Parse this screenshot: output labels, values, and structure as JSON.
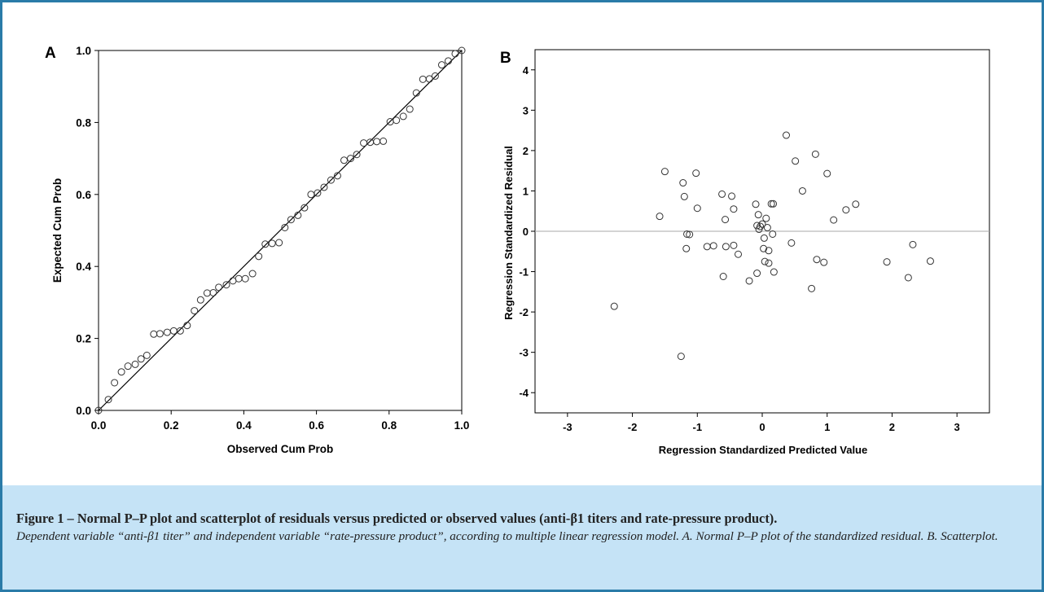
{
  "chart_data": [
    {
      "panel_label": "A",
      "type": "scatter",
      "subtype": "normal-pp-plot",
      "xlabel": "Observed Cum Prob",
      "ylabel": "Expected Cum Prob",
      "xlim": [
        0,
        1
      ],
      "ylim": [
        0,
        1
      ],
      "xticks": [
        "0.0",
        "0.2",
        "0.4",
        "0.6",
        "0.8",
        "1.0"
      ],
      "yticks": [
        "0.0",
        "0.2",
        "0.4",
        "0.6",
        "0.8",
        "1.0"
      ],
      "grid": false,
      "reference_line": "y = x",
      "points": [
        [
          0.0,
          0.0
        ],
        [
          0.027,
          0.03
        ],
        [
          0.044,
          0.077
        ],
        [
          0.063,
          0.107
        ],
        [
          0.081,
          0.123
        ],
        [
          0.101,
          0.128
        ],
        [
          0.117,
          0.143
        ],
        [
          0.133,
          0.153
        ],
        [
          0.152,
          0.212
        ],
        [
          0.169,
          0.213
        ],
        [
          0.189,
          0.217
        ],
        [
          0.207,
          0.221
        ],
        [
          0.225,
          0.221
        ],
        [
          0.244,
          0.236
        ],
        [
          0.264,
          0.277
        ],
        [
          0.281,
          0.307
        ],
        [
          0.299,
          0.326
        ],
        [
          0.316,
          0.327
        ],
        [
          0.331,
          0.342
        ],
        [
          0.352,
          0.349
        ],
        [
          0.37,
          0.36
        ],
        [
          0.386,
          0.366
        ],
        [
          0.404,
          0.366
        ],
        [
          0.424,
          0.38
        ],
        [
          0.441,
          0.428
        ],
        [
          0.459,
          0.462
        ],
        [
          0.478,
          0.464
        ],
        [
          0.497,
          0.466
        ],
        [
          0.513,
          0.508
        ],
        [
          0.53,
          0.53
        ],
        [
          0.549,
          0.542
        ],
        [
          0.567,
          0.563
        ],
        [
          0.585,
          0.6
        ],
        [
          0.603,
          0.604
        ],
        [
          0.621,
          0.62
        ],
        [
          0.64,
          0.64
        ],
        [
          0.658,
          0.652
        ],
        [
          0.676,
          0.695
        ],
        [
          0.694,
          0.7
        ],
        [
          0.711,
          0.711
        ],
        [
          0.73,
          0.743
        ],
        [
          0.748,
          0.745
        ],
        [
          0.766,
          0.747
        ],
        [
          0.784,
          0.748
        ],
        [
          0.803,
          0.802
        ],
        [
          0.82,
          0.806
        ],
        [
          0.839,
          0.817
        ],
        [
          0.857,
          0.837
        ],
        [
          0.875,
          0.882
        ],
        [
          0.893,
          0.92
        ],
        [
          0.911,
          0.921
        ],
        [
          0.927,
          0.929
        ],
        [
          0.945,
          0.96
        ],
        [
          0.963,
          0.971
        ],
        [
          0.982,
          0.991
        ],
        [
          1.0,
          1.0
        ]
      ]
    },
    {
      "panel_label": "B",
      "type": "scatter",
      "xlabel": "Regression Standardized Predicted Value",
      "ylabel": "Regression Standardized Residual",
      "xlim": [
        -3.5,
        3.5
      ],
      "ylim": [
        -4.5,
        4.5
      ],
      "xticks": [
        "-3",
        "-2",
        "-1",
        "0",
        "1",
        "2",
        "3"
      ],
      "yticks": [
        "-4",
        "-3",
        "-2",
        "-1",
        "0",
        "1",
        "2",
        "3",
        "4"
      ],
      "grid": false,
      "reference_line": "y = 0",
      "points": [
        [
          -2.28,
          -1.86
        ],
        [
          -1.58,
          0.37
        ],
        [
          -1.5,
          1.48
        ],
        [
          -1.25,
          -3.1
        ],
        [
          -1.22,
          1.2
        ],
        [
          -1.2,
          0.86
        ],
        [
          -1.17,
          -0.43
        ],
        [
          -1.16,
          -0.07
        ],
        [
          -1.12,
          -0.08
        ],
        [
          -1.02,
          1.44
        ],
        [
          -1.0,
          0.57
        ],
        [
          -0.85,
          -0.38
        ],
        [
          -0.75,
          -0.36
        ],
        [
          -0.62,
          0.92
        ],
        [
          -0.6,
          -1.12
        ],
        [
          -0.57,
          0.29
        ],
        [
          -0.56,
          -0.38
        ],
        [
          -0.47,
          0.87
        ],
        [
          -0.44,
          0.55
        ],
        [
          -0.44,
          -0.35
        ],
        [
          -0.37,
          -0.57
        ],
        [
          -0.2,
          -1.23
        ],
        [
          -0.1,
          0.67
        ],
        [
          -0.08,
          0.14
        ],
        [
          -0.08,
          -1.04
        ],
        [
          -0.06,
          0.41
        ],
        [
          -0.05,
          0.05
        ],
        [
          -0.03,
          0.12
        ],
        [
          0.0,
          0.18
        ],
        [
          0.02,
          -0.43
        ],
        [
          0.03,
          -0.17
        ],
        [
          0.04,
          -0.75
        ],
        [
          0.06,
          0.32
        ],
        [
          0.08,
          0.09
        ],
        [
          0.1,
          -0.48
        ],
        [
          0.1,
          -0.79
        ],
        [
          0.14,
          0.68
        ],
        [
          0.16,
          -0.07
        ],
        [
          0.17,
          0.68
        ],
        [
          0.18,
          -1.01
        ],
        [
          0.37,
          2.38
        ],
        [
          0.45,
          -0.29
        ],
        [
          0.51,
          1.74
        ],
        [
          0.62,
          1.0
        ],
        [
          0.76,
          -1.42
        ],
        [
          0.82,
          1.91
        ],
        [
          0.84,
          -0.7
        ],
        [
          0.95,
          -0.77
        ],
        [
          1.0,
          1.43
        ],
        [
          1.1,
          0.28
        ],
        [
          1.29,
          0.53
        ],
        [
          1.44,
          0.67
        ],
        [
          1.92,
          -0.76
        ],
        [
          2.25,
          -1.15
        ],
        [
          2.32,
          -0.33
        ],
        [
          2.59,
          -0.74
        ]
      ]
    }
  ],
  "caption": {
    "title": "Figure 1 – Normal P–P plot and scatterplot of residuals versus predicted or observed values (anti-β1 titers and rate-pressure product).",
    "body": "Dependent variable “anti-β1 titer” and independent variable “rate-pressure product”, according to multiple linear regression model. A. Normal P–P plot of the standardized residual. B. Scatterplot."
  },
  "colors": {
    "frame_border": "#2a7ba8",
    "caption_background": "#c5e3f6",
    "axis": "#000000",
    "marker": "#333333",
    "zero_line": "#aaaaaa"
  }
}
